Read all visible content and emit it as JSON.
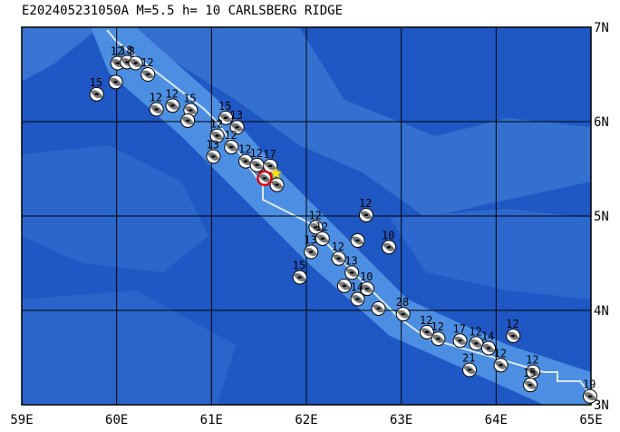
{
  "map": {
    "title": "E202405231050A M=5.5 h= 10 CARLSBERG RIDGE",
    "xlim": [
      59,
      65
    ],
    "ylim": [
      3,
      7
    ],
    "xticks": [
      {
        "value": 59,
        "label": "59E"
      },
      {
        "value": 60,
        "label": "60E"
      },
      {
        "value": 61,
        "label": "61E"
      },
      {
        "value": 62,
        "label": "62E"
      },
      {
        "value": 63,
        "label": "63E"
      },
      {
        "value": 64,
        "label": "64E"
      },
      {
        "value": 65,
        "label": "65E"
      }
    ],
    "yticks": [
      {
        "value": 3,
        "label": "3N"
      },
      {
        "value": 4,
        "label": "4N"
      },
      {
        "value": 5,
        "label": "5N"
      },
      {
        "value": 6,
        "label": "6N"
      },
      {
        "value": 7,
        "label": "7N"
      }
    ],
    "events": [
      {
        "lon": 59.79,
        "lat": 6.29,
        "depth": 15
      },
      {
        "lon": 60.01,
        "lat": 6.62,
        "depth": 12
      },
      {
        "lon": 60.11,
        "lat": 6.63,
        "depth": 18
      },
      {
        "lon": 60.2,
        "lat": 6.62,
        "depth": 8
      },
      {
        "lon": 60.33,
        "lat": 6.5,
        "depth": 12
      },
      {
        "lon": 59.99,
        "lat": 6.42
      },
      {
        "lon": 60.42,
        "lat": 6.13,
        "depth": 12
      },
      {
        "lon": 60.59,
        "lat": 6.17,
        "depth": 12
      },
      {
        "lon": 60.78,
        "lat": 6.12,
        "depth": 15
      },
      {
        "lon": 60.75,
        "lat": 6.01
      },
      {
        "lon": 61.15,
        "lat": 6.04,
        "depth": 15
      },
      {
        "lon": 61.27,
        "lat": 5.94,
        "depth": 13
      },
      {
        "lon": 61.06,
        "lat": 5.85,
        "depth": 12
      },
      {
        "lon": 61.02,
        "lat": 5.63,
        "depth": 13
      },
      {
        "lon": 61.21,
        "lat": 5.73,
        "depth": 12
      },
      {
        "lon": 61.36,
        "lat": 5.58,
        "depth": 12
      },
      {
        "lon": 61.48,
        "lat": 5.54,
        "depth": 12
      },
      {
        "lon": 61.62,
        "lat": 5.53,
        "depth": 17
      },
      {
        "lon": 61.69,
        "lat": 5.33
      },
      {
        "lon": 62.1,
        "lat": 4.88,
        "depth": 12
      },
      {
        "lon": 62.17,
        "lat": 4.76,
        "depth": 12
      },
      {
        "lon": 62.05,
        "lat": 4.62,
        "depth": 13
      },
      {
        "lon": 62.63,
        "lat": 5.01,
        "depth": 12
      },
      {
        "lon": 62.54,
        "lat": 4.74
      },
      {
        "lon": 62.87,
        "lat": 4.67,
        "depth": 10
      },
      {
        "lon": 62.34,
        "lat": 4.55,
        "depth": 12
      },
      {
        "lon": 61.93,
        "lat": 4.35,
        "depth": 15
      },
      {
        "lon": 62.48,
        "lat": 4.4,
        "depth": 13
      },
      {
        "lon": 62.4,
        "lat": 4.26
      },
      {
        "lon": 62.64,
        "lat": 4.23,
        "depth": 10
      },
      {
        "lon": 62.54,
        "lat": 4.12,
        "depth": 14
      },
      {
        "lon": 62.76,
        "lat": 4.02
      },
      {
        "lon": 63.02,
        "lat": 3.96,
        "depth": 28
      },
      {
        "lon": 63.27,
        "lat": 3.77,
        "depth": 12
      },
      {
        "lon": 63.39,
        "lat": 3.7,
        "depth": 12
      },
      {
        "lon": 63.62,
        "lat": 3.68,
        "depth": 17
      },
      {
        "lon": 63.79,
        "lat": 3.65,
        "depth": 12
      },
      {
        "lon": 63.92,
        "lat": 3.6,
        "depth": 14
      },
      {
        "lon": 64.18,
        "lat": 3.73,
        "depth": 12
      },
      {
        "lon": 64.05,
        "lat": 3.42,
        "depth": 12
      },
      {
        "lon": 63.72,
        "lat": 3.37,
        "depth": 21
      },
      {
        "lon": 64.39,
        "lat": 3.35,
        "depth": 12
      },
      {
        "lon": 64.36,
        "lat": 3.21,
        "depth": 15
      },
      {
        "lon": 64.99,
        "lat": 3.09,
        "depth": 19
      }
    ],
    "main_event": {
      "lon": 61.56,
      "lat": 5.4
    },
    "epicenter": {
      "lon": 61.68,
      "lat": 5.45
    }
  }
}
